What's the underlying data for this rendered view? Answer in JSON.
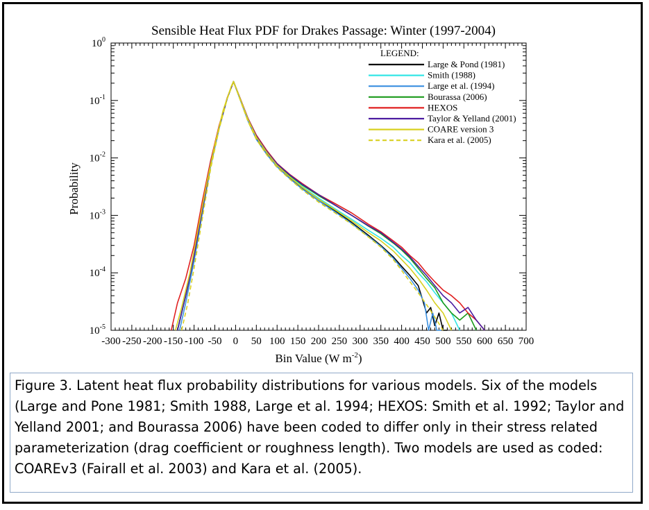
{
  "caption": "Figure 3.  Latent heat flux probability distributions for various models. Six of the models (Large and Pone 1981; Smith 1988, Large et al. 1994; HEXOS: Smith et al. 1992; Taylor and Yelland 2001; and Bourassa 2006) have been coded to differ only in their stress related parameterization (drag coefficient or roughness length). Two models are used as coded: COAREv3 (Fairall et al. 2003) and Kara et al. (2005).",
  "chart_data": {
    "type": "line",
    "title": "Sensible Heat Flux PDF for Drakes Passage: Winter (1997-2004)",
    "xlabel": "Bin Value (W m",
    "xlabel_sup": "-2",
    "xlabel_close": ")",
    "ylabel": "Probability",
    "xlim": [
      -300,
      700
    ],
    "ylim": [
      1e-05,
      1
    ],
    "yscale": "log",
    "grid": false,
    "legend_title": "LEGEND:",
    "legend_position": "top-right",
    "x_ticks": [
      -300,
      -250,
      -200,
      -150,
      -100,
      -50,
      0,
      50,
      100,
      150,
      200,
      250,
      300,
      350,
      400,
      450,
      500,
      550,
      600,
      650,
      700
    ],
    "x_tick_labels": [
      "-300",
      "-250",
      "-200",
      "-150",
      "-100",
      "-50",
      "0",
      "50",
      "100",
      "150",
      "200",
      "250",
      "300",
      "350",
      "400",
      "450",
      "500",
      "550",
      "600",
      "650",
      "700"
    ],
    "y_ticks": [
      {
        "base": "10",
        "exp": "0"
      },
      {
        "base": "10",
        "exp": "-1"
      },
      {
        "base": "10",
        "exp": "-2"
      },
      {
        "base": "10",
        "exp": "-3"
      },
      {
        "base": "10",
        "exp": "-4"
      },
      {
        "base": "10",
        "exp": "-5"
      }
    ],
    "series": [
      {
        "name": "Large & Pond (1981)",
        "color": "#000000",
        "dash": false,
        "x": [
          -140,
          -120,
          -100,
          -80,
          -60,
          -40,
          -20,
          -5,
          10,
          30,
          50,
          75,
          100,
          130,
          160,
          200,
          240,
          280,
          320,
          350,
          380,
          400,
          420,
          440,
          450,
          460,
          470,
          480,
          490,
          500,
          510
        ],
        "y": [
          1e-05,
          4e-05,
          0.00018,
          0.0012,
          0.0075,
          0.033,
          0.11,
          0.215,
          0.11,
          0.045,
          0.022,
          0.012,
          0.0072,
          0.0045,
          0.003,
          0.0019,
          0.0012,
          0.00075,
          0.00045,
          0.0003,
          0.00019,
          0.00013,
          9e-05,
          6e-05,
          3.5e-05,
          2e-05,
          2.5e-05,
          1.2e-05,
          2e-05,
          1e-05,
          1e-05
        ]
      },
      {
        "name": "Smith (1988)",
        "color": "#33e6e6",
        "dash": false,
        "x": [
          -140,
          -120,
          -100,
          -80,
          -60,
          -40,
          -20,
          -5,
          10,
          30,
          50,
          75,
          100,
          130,
          160,
          200,
          240,
          280,
          320,
          350,
          380,
          400,
          420,
          440,
          460,
          480,
          500,
          520,
          540
        ],
        "y": [
          1e-05,
          4e-05,
          0.00019,
          0.0013,
          0.0078,
          0.034,
          0.11,
          0.213,
          0.112,
          0.047,
          0.023,
          0.0125,
          0.0075,
          0.0048,
          0.0032,
          0.002,
          0.0013,
          0.00085,
          0.00055,
          0.0004,
          0.00028,
          0.0002,
          0.00015,
          0.0001,
          7e-05,
          4.5e-05,
          3e-05,
          2e-05,
          1e-05
        ]
      },
      {
        "name": "Large et al. (1994)",
        "color": "#3a8fe0",
        "dash": false,
        "x": [
          -135,
          -120,
          -100,
          -80,
          -60,
          -40,
          -20,
          -5,
          10,
          30,
          50,
          75,
          100,
          130,
          160,
          200,
          240,
          280,
          320,
          350,
          380,
          400,
          420,
          440,
          455,
          465,
          475,
          485,
          495
        ],
        "y": [
          1e-05,
          3e-05,
          0.00016,
          0.0011,
          0.0072,
          0.032,
          0.108,
          0.212,
          0.108,
          0.044,
          0.021,
          0.0115,
          0.007,
          0.0044,
          0.0029,
          0.0018,
          0.00115,
          0.00072,
          0.00043,
          0.00029,
          0.00018,
          0.00012,
          8e-05,
          5e-05,
          3e-05,
          1e-05,
          2e-05,
          1e-05,
          1e-05
        ]
      },
      {
        "name": "Bourassa (2006)",
        "color": "#1a9a1a",
        "dash": false,
        "x": [
          -140,
          -120,
          -100,
          -80,
          -60,
          -40,
          -20,
          -5,
          10,
          30,
          50,
          75,
          100,
          130,
          160,
          200,
          240,
          280,
          320,
          350,
          380,
          400,
          420,
          440,
          460,
          480,
          500,
          520,
          540,
          560,
          580
        ],
        "y": [
          1e-05,
          4e-05,
          0.0002,
          0.0013,
          0.008,
          0.034,
          0.11,
          0.214,
          0.113,
          0.048,
          0.024,
          0.013,
          0.0078,
          0.005,
          0.0034,
          0.0022,
          0.0015,
          0.001,
          0.00065,
          0.00048,
          0.00033,
          0.00025,
          0.00018,
          0.00012,
          8e-05,
          5.5e-05,
          3e-05,
          2e-05,
          1.5e-05,
          2e-05,
          1e-05
        ]
      },
      {
        "name": "HEXOS",
        "color": "#e02020",
        "dash": false,
        "x": [
          -155,
          -140,
          -120,
          -100,
          -80,
          -60,
          -40,
          -20,
          -5,
          10,
          30,
          50,
          75,
          100,
          130,
          160,
          200,
          240,
          280,
          320,
          350,
          380,
          400,
          420,
          440,
          460,
          480,
          500,
          520,
          540,
          560,
          580,
          600
        ],
        "y": [
          1e-05,
          3e-05,
          8e-05,
          0.0003,
          0.0018,
          0.009,
          0.036,
          0.112,
          0.212,
          0.114,
          0.049,
          0.025,
          0.0135,
          0.008,
          0.0052,
          0.0036,
          0.0023,
          0.0016,
          0.0011,
          0.0007,
          0.00052,
          0.00036,
          0.00028,
          0.0002,
          0.00015,
          0.0001,
          7e-05,
          5e-05,
          4e-05,
          3e-05,
          2e-05,
          1.5e-05,
          1e-05
        ]
      },
      {
        "name": "Taylor & Yelland (2001)",
        "color": "#4a1aa0",
        "dash": false,
        "x": [
          -140,
          -120,
          -100,
          -80,
          -60,
          -40,
          -20,
          -5,
          10,
          30,
          50,
          75,
          100,
          130,
          160,
          200,
          240,
          280,
          320,
          350,
          380,
          400,
          420,
          440,
          460,
          480,
          500,
          520,
          540,
          560,
          580,
          600
        ],
        "y": [
          1e-05,
          4e-05,
          0.0002,
          0.0013,
          0.008,
          0.034,
          0.11,
          0.214,
          0.113,
          0.048,
          0.024,
          0.013,
          0.0079,
          0.0051,
          0.0035,
          0.0023,
          0.0015,
          0.001,
          0.00066,
          0.0005,
          0.00034,
          0.00026,
          0.00019,
          0.00013,
          9e-05,
          6e-05,
          4e-05,
          3e-05,
          2e-05,
          2.5e-05,
          1.5e-05,
          1e-05
        ]
      },
      {
        "name": "COARE version 3",
        "color": "#d8d020",
        "dash": false,
        "x": [
          -145,
          -130,
          -110,
          -90,
          -70,
          -50,
          -30,
          -10,
          -5,
          10,
          30,
          50,
          75,
          100,
          130,
          160,
          200,
          240,
          280,
          320,
          350,
          380,
          400,
          420,
          440,
          460,
          480,
          500,
          520
        ],
        "y": [
          1e-05,
          2.5e-05,
          0.0001,
          0.0006,
          0.0035,
          0.017,
          0.068,
          0.18,
          0.215,
          0.112,
          0.047,
          0.023,
          0.0125,
          0.0074,
          0.0047,
          0.0031,
          0.0019,
          0.00125,
          0.0008,
          0.0005,
          0.00036,
          0.00024,
          0.00017,
          0.00012,
          8e-05,
          5e-05,
          3e-05,
          2e-05,
          1e-05
        ]
      },
      {
        "name": "Kara et al. (2005)",
        "color": "#d8d020",
        "dash": true,
        "x": [
          -130,
          -115,
          -100,
          -80,
          -60,
          -40,
          -20,
          -5,
          10,
          30,
          50,
          75,
          100,
          130,
          160,
          200,
          240,
          280,
          320,
          350,
          380,
          400,
          420,
          440,
          460,
          480,
          500
        ],
        "y": [
          1e-05,
          3e-05,
          0.00012,
          0.0009,
          0.0065,
          0.031,
          0.107,
          0.212,
          0.107,
          0.043,
          0.021,
          0.0113,
          0.0068,
          0.0043,
          0.0028,
          0.0017,
          0.0011,
          0.0007,
          0.00042,
          0.00028,
          0.00017,
          0.00011,
          7e-05,
          4.5e-05,
          2.8e-05,
          1.7e-05,
          1e-05
        ]
      }
    ]
  }
}
